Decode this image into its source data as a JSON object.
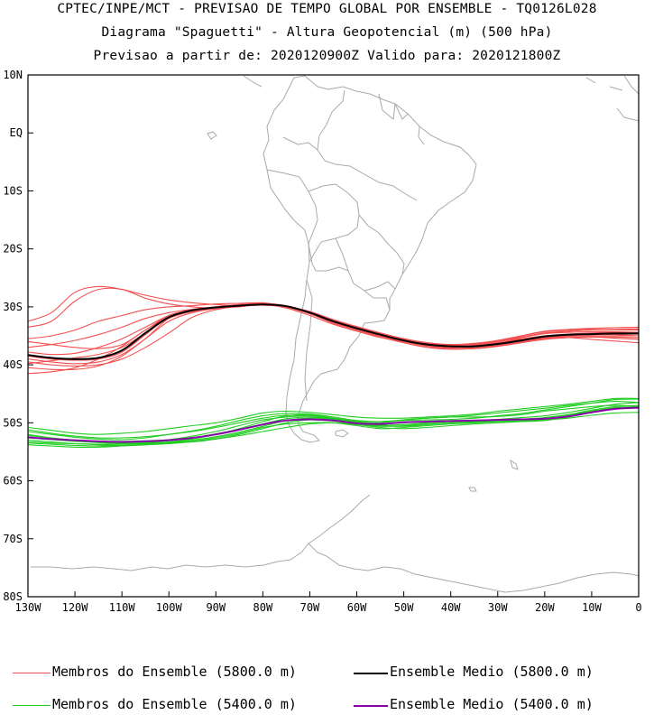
{
  "title": {
    "line1": "CPTEC/INPE/MCT - PREVISAO DE TEMPO GLOBAL POR ENSEMBLE - TQ0126L028",
    "line2": "Diagrama \"Spaguetti\" - Altura Geopotencial (m) (500 hPa)",
    "line3": "Previsao a partir de: 2020120900Z  Valido para: 2020121800Z"
  },
  "axes": {
    "lon_range": [
      -130,
      0
    ],
    "lat_range": [
      -80,
      10
    ],
    "lon_ticks": [
      {
        "value": -130,
        "label": "130W"
      },
      {
        "value": -120,
        "label": "120W"
      },
      {
        "value": -110,
        "label": "110W"
      },
      {
        "value": -100,
        "label": "100W"
      },
      {
        "value": -90,
        "label": "90W"
      },
      {
        "value": -80,
        "label": "80W"
      },
      {
        "value": -70,
        "label": "70W"
      },
      {
        "value": -60,
        "label": "60W"
      },
      {
        "value": -50,
        "label": "50W"
      },
      {
        "value": -40,
        "label": "40W"
      },
      {
        "value": -30,
        "label": "30W"
      },
      {
        "value": -20,
        "label": "20W"
      },
      {
        "value": -10,
        "label": "10W"
      },
      {
        "value": 0,
        "label": "0"
      }
    ],
    "lat_ticks": [
      {
        "value": 10,
        "label": "10N"
      },
      {
        "value": 0,
        "label": "EQ"
      },
      {
        "value": -10,
        "label": "10S"
      },
      {
        "value": -20,
        "label": "20S"
      },
      {
        "value": -30,
        "label": "30S"
      },
      {
        "value": -40,
        "label": "40S"
      },
      {
        "value": -50,
        "label": "50S"
      },
      {
        "value": -60,
        "label": "60S"
      },
      {
        "value": -70,
        "label": "70S"
      },
      {
        "value": -80,
        "label": "80S"
      }
    ]
  },
  "colors": {
    "members_5800": "#f25050",
    "mean_5800": "#000000",
    "members_5400": "#22cc22",
    "mean_5400": "#8800aa",
    "coastline": "#aaaaaa"
  },
  "legend": {
    "members_5800": "Membros do Ensemble (5800.0 m)",
    "mean_5800": "Ensemble Medio (5800.0 m)",
    "members_5400": "Membros do Ensemble (5400.0 m)",
    "mean_5400": "Ensemble Medio (5400.0 m)"
  },
  "chart_data": {
    "type": "line",
    "x_unit": "longitude (deg)",
    "y_unit": "latitude (deg)",
    "x": [
      -130,
      -125,
      -120,
      -115,
      -110,
      -105,
      -100,
      -95,
      -90,
      -85,
      -80,
      -75,
      -70,
      -65,
      -60,
      -55,
      -50,
      -45,
      -40,
      -35,
      -30,
      -25,
      -20,
      -15,
      -10,
      -5,
      0
    ],
    "series": [
      {
        "name": "Ensemble Medio (5800.0 m)",
        "color_key": "mean_5800",
        "values": [
          -38.3,
          -38.8,
          -39.0,
          -38.8,
          -37.5,
          -34.5,
          -31.8,
          -30.6,
          -30.1,
          -29.8,
          -29.6,
          -29.9,
          -31.0,
          -32.5,
          -33.7,
          -34.8,
          -35.8,
          -36.5,
          -36.8,
          -36.8,
          -36.4,
          -35.8,
          -35.1,
          -34.8,
          -34.7,
          -34.6,
          -34.6
        ]
      },
      {
        "name": "Ensemble Medio (5400.0 m)",
        "color_key": "mean_5400",
        "values": [
          -52.5,
          -52.8,
          -53.0,
          -53.2,
          -53.3,
          -53.2,
          -53.0,
          -52.6,
          -52.0,
          -51.2,
          -50.3,
          -49.6,
          -49.4,
          -49.6,
          -50.1,
          -50.2,
          -49.9,
          -49.8,
          -49.7,
          -49.6,
          -49.5,
          -49.4,
          -49.3,
          -48.9,
          -48.2,
          -47.6,
          -47.4
        ]
      }
    ],
    "members_5800": [
      [
        -32.5,
        -31.0,
        -27.5,
        -26.5,
        -27.0,
        -28.0,
        -28.8,
        -29.3,
        -29.6,
        -29.8,
        -29.7,
        -30.0,
        -31.2,
        -32.8,
        -34.0,
        -35.0,
        -35.9,
        -36.4,
        -36.6,
        -36.4,
        -35.8,
        -35.0,
        -34.3,
        -34.0,
        -33.8,
        -33.6,
        -33.5
      ],
      [
        -33.5,
        -32.5,
        -29.0,
        -27.0,
        -27.0,
        -28.5,
        -29.5,
        -30.0,
        -30.2,
        -30.0,
        -29.6,
        -30.2,
        -31.5,
        -33.0,
        -34.2,
        -35.3,
        -36.0,
        -36.6,
        -37.0,
        -36.8,
        -36.0,
        -35.3,
        -34.6,
        -34.2,
        -34.0,
        -33.9,
        -33.8
      ],
      [
        -35.5,
        -35.0,
        -34.0,
        -32.5,
        -31.5,
        -30.5,
        -30.0,
        -29.8,
        -29.5,
        -29.4,
        -29.3,
        -29.9,
        -30.8,
        -32.2,
        -33.4,
        -34.5,
        -35.5,
        -36.2,
        -36.6,
        -36.6,
        -36.2,
        -35.6,
        -35.0,
        -34.7,
        -34.5,
        -34.4,
        -34.4
      ],
      [
        -37.0,
        -36.5,
        -35.8,
        -34.8,
        -33.5,
        -32.0,
        -31.0,
        -30.4,
        -30.0,
        -29.6,
        -29.5,
        -30.0,
        -31.0,
        -32.6,
        -33.8,
        -35.0,
        -36.0,
        -36.8,
        -37.2,
        -37.2,
        -36.8,
        -36.0,
        -35.3,
        -35.0,
        -34.8,
        -34.7,
        -34.7
      ],
      [
        -37.8,
        -38.2,
        -38.0,
        -37.0,
        -35.5,
        -33.5,
        -31.5,
        -30.5,
        -30.0,
        -29.8,
        -29.7,
        -30.0,
        -31.1,
        -32.6,
        -33.8,
        -34.9,
        -35.8,
        -36.4,
        -36.7,
        -36.5,
        -36.0,
        -35.2,
        -34.5,
        -34.2,
        -34.0,
        -34.0,
        -34.0
      ],
      [
        -39.0,
        -39.5,
        -39.8,
        -39.5,
        -38.2,
        -35.5,
        -32.0,
        -30.8,
        -30.2,
        -29.9,
        -29.7,
        -30.0,
        -31.0,
        -32.4,
        -33.6,
        -34.7,
        -35.7,
        -36.6,
        -37.0,
        -37.0,
        -36.6,
        -36.0,
        -35.5,
        -35.3,
        -35.2,
        -35.2,
        -35.3
      ],
      [
        -39.5,
        -40.0,
        -40.2,
        -40.0,
        -39.0,
        -37.0,
        -34.5,
        -31.8,
        -30.5,
        -29.9,
        -29.6,
        -29.9,
        -31.0,
        -32.5,
        -33.8,
        -35.0,
        -36.0,
        -36.8,
        -37.2,
        -37.2,
        -36.8,
        -36.2,
        -35.6,
        -35.3,
        -35.2,
        -35.4,
        -35.6
      ],
      [
        -40.5,
        -40.8,
        -40.8,
        -40.2,
        -38.5,
        -35.5,
        -32.5,
        -31.0,
        -30.3,
        -29.9,
        -29.7,
        -30.1,
        -31.2,
        -32.6,
        -33.8,
        -34.8,
        -35.8,
        -36.4,
        -36.8,
        -36.7,
        -36.3,
        -35.8,
        -35.3,
        -35.3,
        -35.6,
        -35.9,
        -36.2
      ],
      [
        -41.5,
        -41.2,
        -40.5,
        -39.0,
        -36.8,
        -34.0,
        -31.8,
        -30.8,
        -30.3,
        -29.8,
        -29.6,
        -30.0,
        -31.1,
        -32.5,
        -33.7,
        -34.8,
        -35.7,
        -36.4,
        -36.7,
        -36.6,
        -36.0,
        -35.5,
        -35.0,
        -34.8,
        -34.7,
        -34.8,
        -35.0
      ],
      [
        -38.5,
        -39.0,
        -39.2,
        -39.0,
        -37.8,
        -34.8,
        -31.8,
        -30.6,
        -30.0,
        -29.6,
        -29.4,
        -29.8,
        -30.9,
        -32.3,
        -33.5,
        -34.6,
        -35.5,
        -36.3,
        -36.6,
        -36.5,
        -36.0,
        -35.0,
        -34.2,
        -33.9,
        -33.7,
        -33.6,
        -33.5
      ],
      [
        -36.0,
        -36.5,
        -37.0,
        -37.2,
        -36.5,
        -34.0,
        -31.5,
        -30.5,
        -30.0,
        -29.7,
        -29.6,
        -30.0,
        -31.2,
        -32.8,
        -34.0,
        -35.2,
        -36.2,
        -37.0,
        -37.3,
        -37.2,
        -36.7,
        -36.0,
        -35.4,
        -35.1,
        -35.0,
        -35.0,
        -35.0
      ],
      [
        -39.8,
        -39.3,
        -38.8,
        -38.2,
        -37.0,
        -34.5,
        -32.0,
        -30.8,
        -30.2,
        -29.8,
        -29.6,
        -29.9,
        -31.0,
        -32.4,
        -33.6,
        -34.7,
        -35.6,
        -36.2,
        -36.5,
        -36.3,
        -35.8,
        -35.2,
        -34.6,
        -34.4,
        -34.3,
        -34.3,
        -34.4
      ]
    ],
    "members_5400": [
      [
        -50.8,
        -51.3,
        -51.8,
        -52.0,
        -51.8,
        -51.5,
        -51.0,
        -50.5,
        -50.0,
        -49.2,
        -48.3,
        -48.0,
        -48.2,
        -48.6,
        -49.0,
        -49.2,
        -49.2,
        -49.0,
        -48.8,
        -48.5,
        -48.0,
        -47.6,
        -47.2,
        -46.8,
        -46.3,
        -45.8,
        -45.8
      ],
      [
        -51.5,
        -52.0,
        -52.5,
        -52.8,
        -52.9,
        -52.6,
        -52.0,
        -51.4,
        -50.6,
        -49.6,
        -48.8,
        -48.4,
        -48.5,
        -49.0,
        -49.6,
        -49.8,
        -49.6,
        -49.5,
        -49.4,
        -49.2,
        -48.8,
        -48.4,
        -47.8,
        -47.2,
        -46.6,
        -46.0,
        -45.9
      ],
      [
        -52.0,
        -52.6,
        -53.0,
        -53.4,
        -53.6,
        -53.5,
        -53.3,
        -52.8,
        -52.0,
        -51.0,
        -49.8,
        -48.8,
        -48.6,
        -49.2,
        -49.8,
        -50.2,
        -50.0,
        -49.8,
        -49.6,
        -49.6,
        -49.4,
        -49.1,
        -48.8,
        -48.2,
        -47.5,
        -46.8,
        -46.5
      ],
      [
        -53.0,
        -53.3,
        -53.6,
        -53.8,
        -53.9,
        -53.7,
        -53.4,
        -53.0,
        -52.4,
        -51.6,
        -50.6,
        -49.6,
        -49.2,
        -49.4,
        -50.0,
        -50.5,
        -50.6,
        -50.3,
        -50.0,
        -49.8,
        -49.6,
        -49.5,
        -49.3,
        -48.6,
        -47.8,
        -47.2,
        -47.0
      ],
      [
        -53.8,
        -54.0,
        -54.2,
        -54.2,
        -54.0,
        -53.8,
        -53.5,
        -53.2,
        -52.8,
        -52.2,
        -51.5,
        -50.8,
        -50.2,
        -50.0,
        -50.3,
        -50.8,
        -51.0,
        -50.8,
        -50.5,
        -50.2,
        -50.0,
        -49.8,
        -49.6,
        -49.0,
        -48.2,
        -47.5,
        -47.2
      ],
      [
        -52.2,
        -52.6,
        -53.0,
        -53.2,
        -53.2,
        -53.1,
        -52.9,
        -52.3,
        -51.5,
        -50.5,
        -49.5,
        -49.0,
        -48.8,
        -49.3,
        -49.9,
        -50.0,
        -49.5,
        -49.2,
        -49.0,
        -49.0,
        -48.9,
        -48.6,
        -48.0,
        -47.6,
        -47.2,
        -47.0,
        -47.2
      ],
      [
        -53.3,
        -53.5,
        -53.6,
        -53.7,
        -53.7,
        -53.6,
        -53.5,
        -53.3,
        -52.8,
        -52.0,
        -51.0,
        -50.0,
        -49.5,
        -49.7,
        -50.2,
        -50.6,
        -50.5,
        -50.2,
        -50.0,
        -49.9,
        -49.8,
        -49.7,
        -49.5,
        -49.2,
        -48.7,
        -48.3,
        -48.2
      ],
      [
        -52.6,
        -52.9,
        -53.2,
        -53.4,
        -53.5,
        -53.4,
        -53.1,
        -52.6,
        -51.9,
        -51.1,
        -50.2,
        -49.3,
        -49.0,
        -49.4,
        -50.0,
        -50.4,
        -50.3,
        -50.0,
        -49.8,
        -49.7,
        -49.6,
        -49.4,
        -49.1,
        -48.6,
        -48.0,
        -47.5,
        -47.4
      ],
      [
        -51.2,
        -51.8,
        -52.3,
        -52.6,
        -52.6,
        -52.4,
        -52.0,
        -51.5,
        -50.8,
        -50.0,
        -49.2,
        -48.7,
        -48.8,
        -49.2,
        -49.7,
        -49.8,
        -49.5,
        -49.2,
        -49.0,
        -48.7,
        -48.3,
        -47.9,
        -47.5,
        -47.0,
        -46.6,
        -46.3,
        -46.5
      ],
      [
        -53.5,
        -53.7,
        -53.9,
        -54.0,
        -53.9,
        -53.8,
        -53.6,
        -53.2,
        -52.6,
        -51.8,
        -50.8,
        -50.2,
        -50.0,
        -50.0,
        -50.5,
        -51.0,
        -50.8,
        -50.5,
        -50.2,
        -50.0,
        -49.8,
        -49.6,
        -49.4,
        -48.8,
        -48.0,
        -47.4,
        -47.2
      ]
    ]
  }
}
